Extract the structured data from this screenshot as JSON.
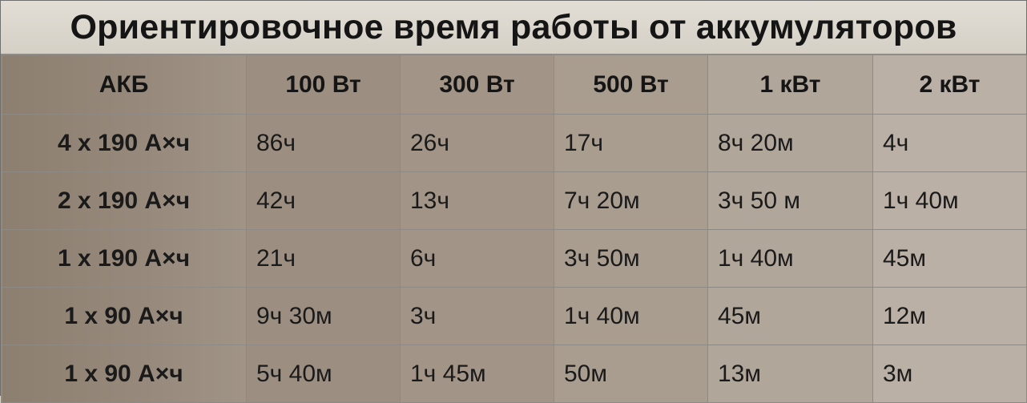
{
  "title": "Ориентировочное время работы от аккумуляторов",
  "table": {
    "headers": [
      "АКБ",
      "100 Вт",
      "300 Вт",
      "500 Вт",
      "1 кВт",
      "2 кВт"
    ],
    "rows": [
      [
        "4 х 190 А×ч",
        "86ч",
        "26ч",
        "17ч",
        "8ч 20м",
        "4ч"
      ],
      [
        "2 х 190 А×ч",
        "42ч",
        "13ч",
        "7ч 20м",
        "3ч 50 м",
        "1ч 40м"
      ],
      [
        "1 х 190 А×ч",
        "21ч",
        "6ч",
        "3ч 50м",
        "1ч 40м",
        "45м"
      ],
      [
        "1 х 90 А×ч",
        "9ч 30м",
        "3ч",
        "1ч 40м",
        "45м",
        "12м"
      ],
      [
        "1 х 90 А×ч",
        "5ч 40м",
        "1ч 45м",
        "50м",
        "13м",
        "3м"
      ]
    ]
  }
}
